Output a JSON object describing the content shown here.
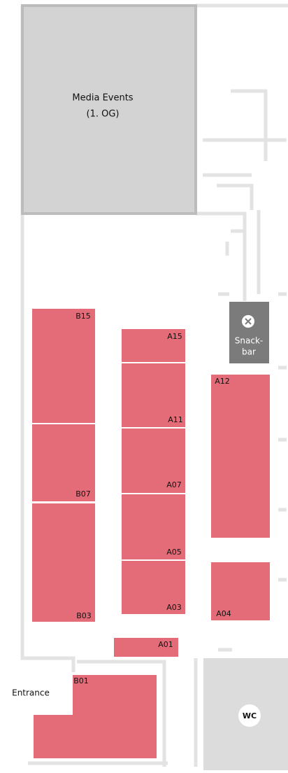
{
  "media": {
    "lines": [
      "Media Events",
      "(1. OG)"
    ]
  },
  "booths": [
    {
      "label": "B15"
    },
    {
      "label": "B07"
    },
    {
      "label": "B03"
    },
    {
      "label": "A15"
    },
    {
      "label": "A11"
    },
    {
      "label": "A07"
    },
    {
      "label": "A05"
    },
    {
      "label": "A03"
    },
    {
      "label": "A12"
    },
    {
      "label": "A04"
    },
    {
      "label": "A01"
    },
    {
      "label": "B01"
    }
  ],
  "snackbar": {
    "lines": [
      "Snack-",
      "bar"
    ]
  },
  "entrance": "Entrance",
  "wc": "WC"
}
